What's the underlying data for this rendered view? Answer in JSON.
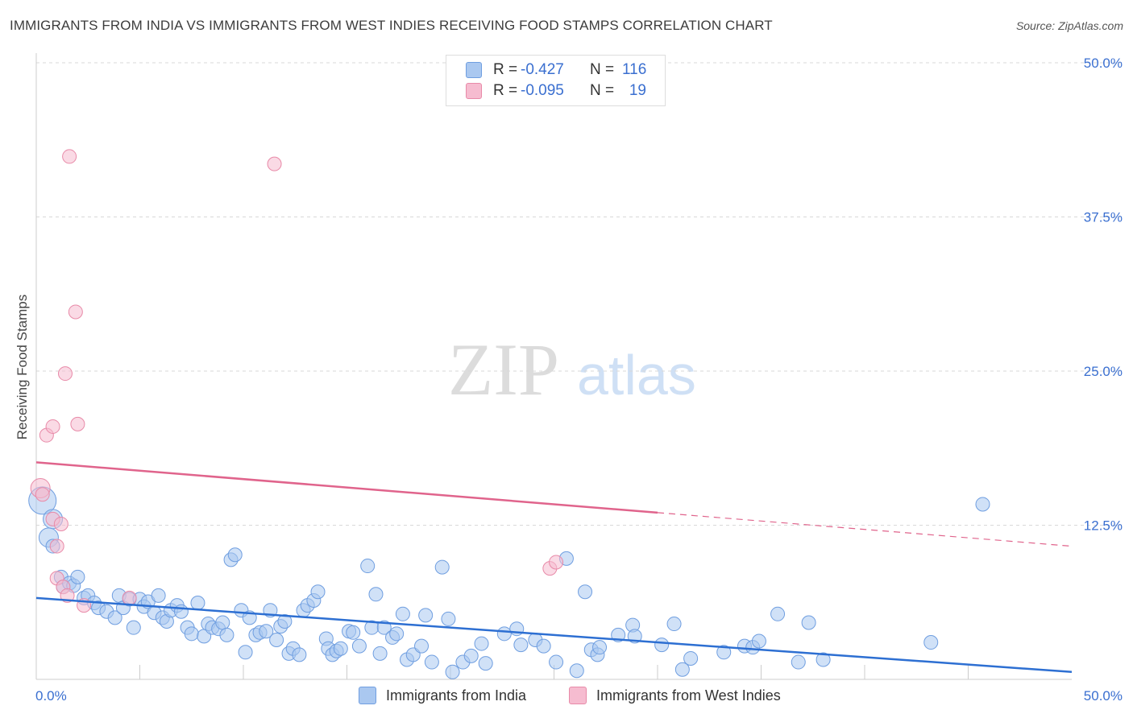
{
  "title": "IMMIGRANTS FROM INDIA VS IMMIGRANTS FROM WEST INDIES RECEIVING FOOD STAMPS CORRELATION CHART",
  "source": "Source: ZipAtlas.com",
  "watermark": {
    "zip": "ZIP",
    "atlas": "atlas"
  },
  "legend": {
    "r_label": "R =",
    "n_label": "N =",
    "rows": [
      {
        "name": "india",
        "r": "-0.427",
        "n": "116",
        "color": "#aac8f0",
        "border": "#6f9ee0"
      },
      {
        "name": "west_indies",
        "r": "-0.095",
        "n": "19",
        "color": "#f6bcd0",
        "border": "#e88aa8"
      }
    ]
  },
  "bottom_legend": {
    "india": "Immigrants from India",
    "west_indies": "Immigrants from West Indies"
  },
  "chart_data": {
    "type": "scatter",
    "title": "IMMIGRANTS FROM INDIA VS IMMIGRANTS FROM WEST INDIES RECEIVING FOOD STAMPS CORRELATION CHART",
    "xlabel": "",
    "ylabel": "Receiving Food Stamps",
    "xlim": [
      0,
      50
    ],
    "ylim": [
      0,
      50
    ],
    "x_tick_labels": [
      "0.0%",
      "50.0%"
    ],
    "y_ticks": [
      12.5,
      25.0,
      37.5,
      50.0
    ],
    "y_tick_labels": [
      "12.5%",
      "25.0%",
      "37.5%",
      "50.0%"
    ],
    "grid": true,
    "colors": {
      "india": "#6f9ee0",
      "india_fill": "#aac8f0",
      "india_line": "#2d6fd2",
      "west_indies": "#e88aa8",
      "west_indies_fill": "#f6bcd0",
      "west_indies_line": "#e0648c",
      "axis_label": "#3a6fd0"
    },
    "series": [
      {
        "name": "Immigrants from India",
        "trend": {
          "x0": 0,
          "y0": 6.6,
          "x1": 50,
          "y1": 0.6
        },
        "points": [
          [
            0.3,
            14.5,
            3
          ],
          [
            0.8,
            13.0,
            2
          ],
          [
            0.6,
            11.5,
            2
          ],
          [
            0.8,
            10.8,
            1
          ],
          [
            1.2,
            8.3,
            1
          ],
          [
            1.3,
            7.5,
            1
          ],
          [
            1.6,
            7.8,
            1
          ],
          [
            1.8,
            7.6,
            1
          ],
          [
            2.0,
            8.3,
            1
          ],
          [
            2.3,
            6.6,
            1
          ],
          [
            2.5,
            6.8,
            1
          ],
          [
            2.8,
            6.2,
            1
          ],
          [
            3.0,
            5.8,
            1
          ],
          [
            3.4,
            5.5,
            1
          ],
          [
            3.8,
            5.0,
            1
          ],
          [
            4.0,
            6.8,
            1
          ],
          [
            4.2,
            5.8,
            1
          ],
          [
            4.5,
            6.5,
            1
          ],
          [
            4.7,
            4.2,
            1
          ],
          [
            5.0,
            6.5,
            1
          ],
          [
            5.2,
            5.9,
            1
          ],
          [
            5.4,
            6.3,
            1
          ],
          [
            5.7,
            5.4,
            1
          ],
          [
            5.9,
            6.8,
            1
          ],
          [
            6.1,
            5.0,
            1
          ],
          [
            6.3,
            4.7,
            1
          ],
          [
            6.5,
            5.6,
            1
          ],
          [
            6.8,
            6.0,
            1
          ],
          [
            7.0,
            5.5,
            1
          ],
          [
            7.3,
            4.2,
            1
          ],
          [
            7.5,
            3.7,
            1
          ],
          [
            7.8,
            6.2,
            1
          ],
          [
            8.1,
            3.5,
            1
          ],
          [
            8.3,
            4.5,
            1
          ],
          [
            8.5,
            4.2,
            1
          ],
          [
            8.8,
            4.1,
            1
          ],
          [
            9.0,
            4.6,
            1
          ],
          [
            9.2,
            3.6,
            1
          ],
          [
            9.4,
            9.7,
            1
          ],
          [
            9.6,
            10.1,
            1
          ],
          [
            9.9,
            5.6,
            1
          ],
          [
            10.1,
            2.2,
            1
          ],
          [
            10.3,
            5.0,
            1
          ],
          [
            10.6,
            3.6,
            1
          ],
          [
            10.8,
            3.8,
            1
          ],
          [
            11.1,
            3.9,
            1
          ],
          [
            11.3,
            5.6,
            1
          ],
          [
            11.6,
            3.2,
            1
          ],
          [
            11.8,
            4.3,
            1
          ],
          [
            12.0,
            4.7,
            1
          ],
          [
            12.2,
            2.1,
            1
          ],
          [
            12.4,
            2.5,
            1
          ],
          [
            12.7,
            2.0,
            1
          ],
          [
            12.9,
            5.6,
            1
          ],
          [
            13.1,
            6.0,
            1
          ],
          [
            13.4,
            6.4,
            1
          ],
          [
            13.6,
            7.1,
            1
          ],
          [
            14.0,
            3.3,
            1
          ],
          [
            14.1,
            2.5,
            1
          ],
          [
            14.3,
            2.0,
            1
          ],
          [
            14.5,
            2.3,
            1
          ],
          [
            14.7,
            2.5,
            1
          ],
          [
            15.1,
            3.9,
            1
          ],
          [
            15.3,
            3.8,
            1
          ],
          [
            15.6,
            2.7,
            1
          ],
          [
            16.0,
            9.2,
            1
          ],
          [
            16.2,
            4.2,
            1
          ],
          [
            16.4,
            6.9,
            1
          ],
          [
            16.6,
            2.1,
            1
          ],
          [
            16.8,
            4.2,
            1
          ],
          [
            17.2,
            3.4,
            1
          ],
          [
            17.4,
            3.7,
            1
          ],
          [
            17.7,
            5.3,
            1
          ],
          [
            17.9,
            1.6,
            1
          ],
          [
            18.2,
            2.0,
            1
          ],
          [
            18.6,
            2.7,
            1
          ],
          [
            18.8,
            5.2,
            1
          ],
          [
            19.1,
            1.4,
            1
          ],
          [
            19.6,
            9.1,
            1
          ],
          [
            19.9,
            4.9,
            1
          ],
          [
            20.1,
            0.6,
            1
          ],
          [
            20.6,
            1.4,
            1
          ],
          [
            21.0,
            1.9,
            1
          ],
          [
            21.5,
            2.9,
            1
          ],
          [
            21.7,
            1.3,
            1
          ],
          [
            22.6,
            3.7,
            1
          ],
          [
            23.2,
            4.1,
            1
          ],
          [
            23.4,
            2.8,
            1
          ],
          [
            24.1,
            3.2,
            1
          ],
          [
            24.5,
            2.7,
            1
          ],
          [
            25.1,
            1.4,
            1
          ],
          [
            25.6,
            9.8,
            1
          ],
          [
            26.1,
            0.7,
            1
          ],
          [
            26.5,
            7.1,
            1
          ],
          [
            26.8,
            2.4,
            1
          ],
          [
            27.1,
            2.0,
            1
          ],
          [
            27.2,
            2.6,
            1
          ],
          [
            28.1,
            3.6,
            1
          ],
          [
            28.8,
            4.4,
            1
          ],
          [
            28.9,
            3.5,
            1
          ],
          [
            30.2,
            2.8,
            1
          ],
          [
            30.8,
            4.5,
            1
          ],
          [
            31.2,
            0.8,
            1
          ],
          [
            31.6,
            1.7,
            1
          ],
          [
            33.2,
            2.2,
            1
          ],
          [
            34.2,
            2.7,
            1
          ],
          [
            34.6,
            2.6,
            1
          ],
          [
            34.9,
            3.1,
            1
          ],
          [
            35.8,
            5.3,
            1
          ],
          [
            36.8,
            1.4,
            1
          ],
          [
            37.3,
            4.6,
            1
          ],
          [
            38.0,
            1.6,
            1
          ],
          [
            43.2,
            3.0,
            1
          ],
          [
            45.7,
            14.2,
            1
          ]
        ]
      },
      {
        "name": "Immigrants from West Indies",
        "trend": {
          "x0": 0,
          "y0": 17.6,
          "x1": 50,
          "y1": 10.8,
          "solid_until": 30
        },
        "points": [
          [
            0.2,
            15.5,
            2
          ],
          [
            0.3,
            15.0,
            1
          ],
          [
            0.5,
            19.8,
            1
          ],
          [
            0.8,
            20.5,
            1
          ],
          [
            0.8,
            13.0,
            1
          ],
          [
            1.0,
            10.8,
            1
          ],
          [
            1.0,
            8.2,
            1
          ],
          [
            1.2,
            12.6,
            1
          ],
          [
            1.3,
            7.5,
            1
          ],
          [
            1.4,
            24.8,
            1
          ],
          [
            1.5,
            6.8,
            1
          ],
          [
            1.6,
            42.4,
            1
          ],
          [
            1.9,
            29.8,
            1
          ],
          [
            2.0,
            20.7,
            1
          ],
          [
            2.3,
            6.0,
            1
          ],
          [
            4.5,
            6.6,
            1
          ],
          [
            11.5,
            41.8,
            1
          ],
          [
            24.8,
            9.0,
            1
          ],
          [
            25.1,
            9.5,
            1
          ]
        ]
      }
    ]
  }
}
